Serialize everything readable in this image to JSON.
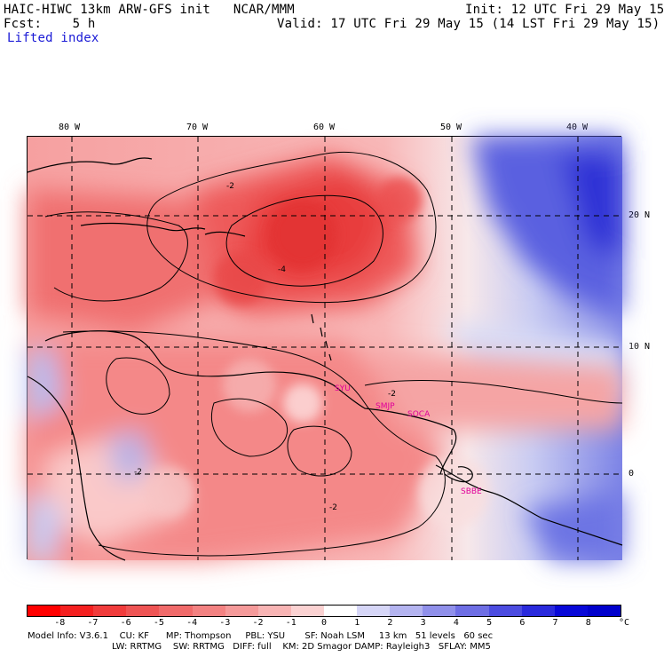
{
  "header": {
    "model_line": "HAIC-HIWC 13km ARW-GFS init   NCAR/MMM",
    "init_line": "Init: 12 UTC Fri 29 May 15",
    "fcst_line": "Fcst:    5 h",
    "valid_line": "Valid: 17 UTC Fri 29 May 15 (14 LST Fri 29 May 15)",
    "field_label": "Lifted index"
  },
  "axes": {
    "lon_labels": [
      "80 W",
      "70 W",
      "60 W",
      "50 W",
      "40 W"
    ],
    "lat_labels": [
      "20 N",
      "10 N",
      "0"
    ]
  },
  "contour_labels": [
    "-2",
    "-4",
    "-2",
    "-2",
    "-2"
  ],
  "sites": [
    "SYU",
    "SMJP",
    "SOCA",
    "SBBE"
  ],
  "colorbar": {
    "labels": [
      "-8",
      "-7",
      "-6",
      "-5",
      "-4",
      "-3",
      "-2",
      "-1",
      "0",
      "1",
      "2",
      "3",
      "4",
      "5",
      "6",
      "7",
      "8"
    ],
    "unit": "°C",
    "colors": [
      "#ff0000",
      "#f42020",
      "#f03c3c",
      "#ee5454",
      "#f06a6a",
      "#f38282",
      "#f59a9a",
      "#f8b4b4",
      "#fbd2d2",
      "#ffffff",
      "#d6d6f7",
      "#b4b4f0",
      "#9090ea",
      "#6e6ee4",
      "#4c4ce0",
      "#2a2adc",
      "#0808d8",
      "#0000cc"
    ]
  },
  "footer": {
    "line1": "Model Info: V3.6.1    CU: KF      MP: Thompson     PBL: YSU       SF: Noah LSM     13 km   51 levels   60 sec",
    "line2": "LW: RRTMG    SW: RRTMG   DIFF: full    KM: 2D Smagor DAMP: Rayleigh3   SFLAY: MM5"
  }
}
